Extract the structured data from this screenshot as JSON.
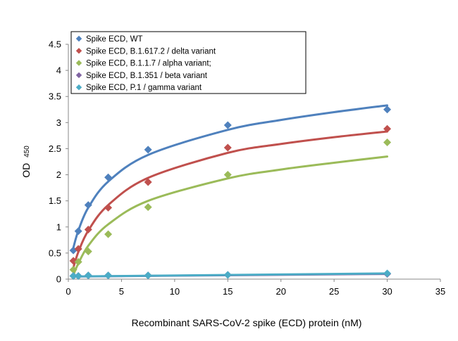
{
  "chart_data": {
    "type": "scatter",
    "xlabel": "Recombinant SARS-CoV-2 spike (ECD) protein (nM)",
    "ylabel_main": "OD",
    "ylabel_sub": "450",
    "xlim": [
      0,
      35
    ],
    "ylim": [
      0,
      4.5
    ],
    "x_ticks": [
      "0",
      "5",
      "10",
      "15",
      "20",
      "25",
      "30",
      "35"
    ],
    "y_ticks": [
      "0",
      "0.5",
      "1",
      "1.5",
      "2",
      "2.5",
      "3",
      "3.5",
      "4",
      "4.5"
    ],
    "grid": false,
    "legend_position": "top-left",
    "series": [
      {
        "name": "Spike ECD, WT",
        "color": "#4f81bd",
        "x": [
          0.47,
          0.94,
          1.875,
          3.75,
          7.5,
          15,
          30
        ],
        "y": [
          0.55,
          0.92,
          1.42,
          1.95,
          2.48,
          2.95,
          3.25
        ],
        "fit": [
          [
            0.47,
            0.6
          ],
          [
            0.94,
            0.93
          ],
          [
            1.875,
            1.37
          ],
          [
            3.75,
            1.87
          ],
          [
            7.5,
            2.38
          ],
          [
            15,
            2.86
          ],
          [
            20,
            3.05
          ],
          [
            25,
            3.2
          ],
          [
            30,
            3.33
          ]
        ]
      },
      {
        "name": "Spike ECD, B.1.617.2 / delta variant",
        "color": "#c0504d",
        "x": [
          0.47,
          0.94,
          1.875,
          3.75,
          7.5,
          15,
          30
        ],
        "y": [
          0.35,
          0.58,
          0.95,
          1.37,
          1.86,
          2.52,
          2.88
        ],
        "fit": [
          [
            0.47,
            0.22
          ],
          [
            0.94,
            0.52
          ],
          [
            1.875,
            0.93
          ],
          [
            3.75,
            1.42
          ],
          [
            7.5,
            1.94
          ],
          [
            15,
            2.42
          ],
          [
            20,
            2.59
          ],
          [
            25,
            2.72
          ],
          [
            30,
            2.83
          ]
        ]
      },
      {
        "name": "Spike ECD, B.1.1.7 / alpha variant;",
        "color": "#9bbb59",
        "x": [
          0.47,
          0.94,
          1.875,
          3.75,
          7.5,
          15,
          30
        ],
        "y": [
          0.18,
          0.33,
          0.53,
          0.86,
          1.38,
          2.0,
          2.62
        ],
        "fit": [
          [
            0.47,
            0.08
          ],
          [
            0.94,
            0.3
          ],
          [
            1.875,
            0.64
          ],
          [
            3.75,
            1.05
          ],
          [
            7.5,
            1.5
          ],
          [
            15,
            1.93
          ],
          [
            20,
            2.1
          ],
          [
            25,
            2.23
          ],
          [
            30,
            2.35
          ]
        ]
      },
      {
        "name": "Spike ECD, B.1.351 / beta variant",
        "color": "#8064a2",
        "x": [
          0.47,
          0.94,
          1.875,
          3.75,
          7.5,
          15,
          30
        ],
        "y": [
          0.06,
          0.06,
          0.07,
          0.07,
          0.07,
          0.08,
          0.1
        ],
        "fit": [
          [
            0.47,
            0.05
          ],
          [
            30,
            0.1
          ]
        ]
      },
      {
        "name": "Spike ECD, P.1 / gamma variant",
        "color": "#4bacc6",
        "x": [
          0.47,
          0.94,
          1.875,
          3.75,
          7.5,
          15,
          30
        ],
        "y": [
          0.06,
          0.06,
          0.07,
          0.07,
          0.07,
          0.08,
          0.11
        ],
        "fit": [
          [
            0.47,
            0.05
          ],
          [
            30,
            0.11
          ]
        ]
      }
    ]
  }
}
